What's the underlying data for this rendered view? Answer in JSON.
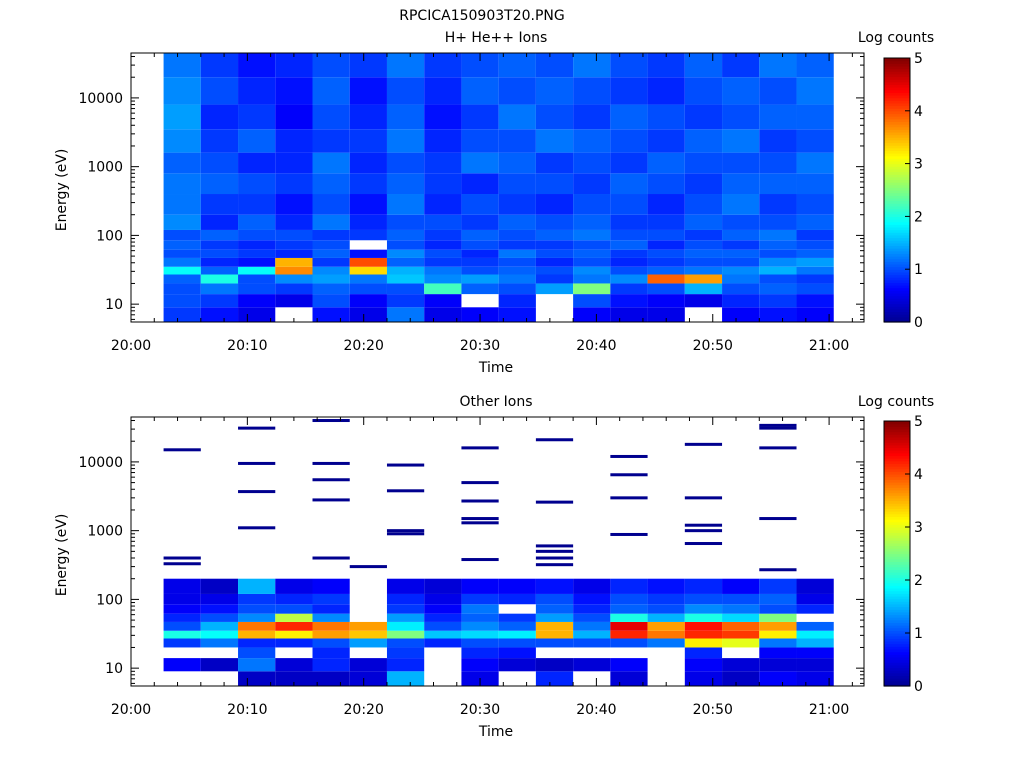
{
  "figure_title": "RPCICA150903T20.PNG",
  "colormap": [
    "#00008f",
    "#0000ff",
    "#0080ff",
    "#00ffff",
    "#80ff80",
    "#ffff00",
    "#ff8000",
    "#ff0000",
    "#800000"
  ],
  "chart_data": [
    {
      "type": "heatmap",
      "title": "H+ He++ Ions",
      "xlabel": "Time",
      "ylabel": "Energy (eV)",
      "x_ticks": [
        "20:00",
        "20:10",
        "20:20",
        "20:30",
        "20:40",
        "20:50",
        "21:00"
      ],
      "y_ticks": [
        "10",
        "100",
        "1000",
        "10000"
      ],
      "y_scale": "log",
      "ylim": [
        5.5,
        45000
      ],
      "xlim_minutes": [
        0,
        63
      ],
      "colorbar_label": "Log counts",
      "colorbar_ticks": [
        "0",
        "1",
        "2",
        "3",
        "4",
        "5"
      ],
      "colorbar_range": [
        0,
        5
      ],
      "time_bins_minutes": [
        [
          2.8,
          6.0
        ],
        [
          6.0,
          9.2
        ],
        [
          9.2,
          12.4
        ],
        [
          12.4,
          15.6
        ],
        [
          15.6,
          18.8
        ],
        [
          18.8,
          22.0
        ],
        [
          22.0,
          25.2
        ],
        [
          25.2,
          28.4
        ],
        [
          28.4,
          31.6
        ],
        [
          31.6,
          34.8
        ],
        [
          34.8,
          38.0
        ],
        [
          38.0,
          41.2
        ],
        [
          41.2,
          44.4
        ],
        [
          44.4,
          47.6
        ],
        [
          47.6,
          50.8
        ],
        [
          50.8,
          54.0
        ],
        [
          54.0,
          57.2
        ],
        [
          57.2,
          60.4
        ]
      ],
      "energy_bins_ev": [
        [
          5.5,
          9
        ],
        [
          9,
          14
        ],
        [
          14,
          20
        ],
        [
          20,
          27
        ],
        [
          27,
          35
        ],
        [
          35,
          47
        ],
        [
          47,
          62
        ],
        [
          62,
          85
        ],
        [
          85,
          120
        ],
        [
          120,
          200
        ],
        [
          200,
          400
        ],
        [
          400,
          800
        ],
        [
          800,
          1600
        ],
        [
          1600,
          3500
        ],
        [
          3500,
          8000
        ],
        [
          8000,
          20000
        ],
        [
          20000,
          45000
        ]
      ],
      "values": [
        [
          0.9,
          1.0,
          1.0,
          1.1,
          1.9,
          1.2,
          1.0,
          1.1,
          1.0,
          1.3,
          1.2,
          1.2,
          1.1,
          1.3,
          1.4,
          1.3,
          1.2
        ],
        [
          0.7,
          0.9,
          1.2,
          2.0,
          1.1,
          0.8,
          1.0,
          0.9,
          1.1,
          0.8,
          0.9,
          1.1,
          1.0,
          0.9,
          0.8,
          1.0,
          0.9
        ],
        [
          0.5,
          0.6,
          1.0,
          1.0,
          1.9,
          0.7,
          0.9,
          0.8,
          1.0,
          1.1,
          0.9,
          1.0,
          0.8,
          1.1,
          0.9,
          0.8,
          0.7
        ],
        [
          null,
          0.5,
          0.9,
          1.3,
          3.7,
          3.5,
          0.8,
          0.9,
          1.0,
          0.8,
          0.7,
          0.9,
          0.8,
          0.8,
          0.6,
          0.7,
          0.8
        ],
        [
          0.7,
          1.0,
          1.1,
          1.4,
          1.3,
          0.9,
          1.1,
          1.0,
          0.9,
          1.2,
          1.0,
          1.1,
          1.2,
          0.9,
          1.0,
          1.1,
          1.0
        ],
        [
          0.5,
          0.6,
          1.0,
          1.2,
          3.3,
          4.0,
          0.7,
          null,
          0.9,
          0.8,
          0.7,
          0.9,
          0.8,
          0.9,
          0.8,
          0.7,
          0.9
        ],
        [
          1.2,
          0.9,
          1.0,
          1.6,
          1.5,
          1.1,
          1.3,
          1.0,
          1.1,
          1.0,
          1.2,
          1.1,
          1.0,
          1.2,
          1.1,
          1.0,
          1.2
        ],
        [
          0.5,
          0.6,
          2.2,
          1.3,
          1.2,
          0.9,
          1.0,
          0.8,
          0.9,
          1.0,
          0.8,
          0.9,
          0.9,
          0.8,
          0.7,
          0.8,
          0.9
        ],
        [
          0.6,
          null,
          1.1,
          1.4,
          1.0,
          0.9,
          0.8,
          1.0,
          1.1,
          0.9,
          1.0,
          0.8,
          1.2,
          1.0,
          0.9,
          1.1,
          1.0
        ],
        [
          0.7,
          0.8,
          1.0,
          1.2,
          1.1,
          1.0,
          1.2,
          0.9,
          1.0,
          1.1,
          0.9,
          1.0,
          1.1,
          1.0,
          1.2,
          1.0,
          1.1
        ],
        [
          null,
          null,
          1.4,
          0.9,
          1.0,
          0.8,
          1.0,
          0.9,
          1.1,
          1.0,
          0.8,
          1.0,
          0.9,
          1.2,
          1.0,
          1.1,
          1.0
        ],
        [
          0.6,
          1.0,
          2.5,
          1.2,
          1.3,
          1.0,
          1.1,
          1.0,
          1.2,
          1.1,
          1.0,
          0.9,
          1.0,
          1.1,
          0.9,
          1.0,
          1.2
        ],
        [
          0.5,
          0.7,
          0.9,
          1.3,
          1.0,
          0.8,
          0.9,
          1.1,
          1.0,
          0.9,
          1.0,
          1.1,
          0.9,
          1.0,
          1.1,
          0.9,
          1.0
        ],
        [
          0.5,
          0.6,
          1.0,
          3.9,
          1.1,
          0.9,
          1.0,
          0.8,
          1.0,
          0.9,
          0.8,
          1.0,
          1.1,
          0.9,
          1.0,
          0.8,
          0.9
        ],
        [
          null,
          0.5,
          1.5,
          3.6,
          1.2,
          1.0,
          1.1,
          1.0,
          0.9,
          1.1,
          1.0,
          0.9,
          1.0,
          1.1,
          0.9,
          1.0,
          1.1
        ],
        [
          0.6,
          0.8,
          1.0,
          1.2,
          1.3,
          1.0,
          1.1,
          0.9,
          1.1,
          1.0,
          1.2,
          1.1,
          1.0,
          1.2,
          1.0,
          1.1,
          0.9
        ],
        [
          0.7,
          0.9,
          1.1,
          1.0,
          1.5,
          1.3,
          1.0,
          1.1,
          1.2,
          1.0,
          0.9,
          1.1,
          1.0,
          0.9,
          1.1,
          1.0,
          1.2
        ],
        [
          0.6,
          0.7,
          1.0,
          0.9,
          1.2,
          1.4,
          1.1,
          1.0,
          0.9,
          1.1,
          1.0,
          1.1,
          1.2,
          1.0,
          1.1,
          1.2,
          1.1
        ]
      ]
    },
    {
      "type": "heatmap",
      "title": "Other Ions",
      "xlabel": "Time",
      "ylabel": "Energy (eV)",
      "x_ticks": [
        "20:00",
        "20:10",
        "20:20",
        "20:30",
        "20:40",
        "20:50",
        "21:00"
      ],
      "y_ticks": [
        "10",
        "100",
        "1000",
        "10000"
      ],
      "y_scale": "log",
      "ylim": [
        5.5,
        45000
      ],
      "xlim_minutes": [
        0,
        63
      ],
      "colorbar_label": "Log counts",
      "colorbar_ticks": [
        "0",
        "1",
        "2",
        "3",
        "4",
        "5"
      ],
      "colorbar_range": [
        0,
        5
      ],
      "time_bins_minutes": [
        [
          2.8,
          6.0
        ],
        [
          6.0,
          9.2
        ],
        [
          9.2,
          12.4
        ],
        [
          12.4,
          15.6
        ],
        [
          15.6,
          18.8
        ],
        [
          18.8,
          22.0
        ],
        [
          22.0,
          25.2
        ],
        [
          25.2,
          28.4
        ],
        [
          28.4,
          31.6
        ],
        [
          31.6,
          34.8
        ],
        [
          34.8,
          38.0
        ],
        [
          38.0,
          41.2
        ],
        [
          41.2,
          44.4
        ],
        [
          44.4,
          47.6
        ],
        [
          47.6,
          50.8
        ],
        [
          50.8,
          54.0
        ],
        [
          54.0,
          57.2
        ],
        [
          57.2,
          60.4
        ]
      ],
      "energy_bins_ev": [
        [
          5.5,
          9
        ],
        [
          9,
          14
        ],
        [
          14,
          20
        ],
        [
          20,
          27
        ],
        [
          27,
          35
        ],
        [
          35,
          47
        ],
        [
          47,
          62
        ],
        [
          62,
          85
        ],
        [
          85,
          120
        ],
        [
          120,
          200
        ]
      ],
      "values": [
        [
          null,
          0.6,
          null,
          0.9,
          2.0,
          1.0,
          0.8,
          0.6,
          0.5,
          0.5
        ],
        [
          null,
          0.3,
          null,
          1.2,
          1.9,
          1.5,
          1.0,
          0.7,
          0.5,
          0.3
        ],
        [
          0.3,
          1.2,
          1.0,
          0.8,
          3.5,
          3.8,
          1.3,
          1.0,
          0.9,
          1.5
        ],
        [
          0.3,
          0.4,
          null,
          0.8,
          3.2,
          4.2,
          2.8,
          1.0,
          0.8,
          0.5
        ],
        [
          0.3,
          0.8,
          0.8,
          1.0,
          3.6,
          3.8,
          1.3,
          0.8,
          0.9,
          0.6
        ],
        [
          0.4,
          0.4,
          null,
          1.4,
          3.4,
          3.6,
          null,
          null,
          null,
          null
        ],
        [
          1.5,
          0.8,
          0.9,
          1.0,
          2.5,
          1.8,
          1.4,
          0.9,
          0.8,
          0.5
        ],
        [
          null,
          null,
          null,
          0.8,
          1.6,
          1.0,
          0.8,
          0.6,
          0.5,
          0.4
        ],
        [
          0.5,
          0.6,
          0.8,
          1.0,
          1.7,
          1.3,
          1.1,
          1.2,
          0.9,
          0.6
        ],
        [
          null,
          0.4,
          0.7,
          1.0,
          1.8,
          1.1,
          0.9,
          null,
          0.8,
          0.6
        ],
        [
          0.8,
          0.3,
          null,
          1.0,
          3.5,
          3.5,
          1.4,
          1.1,
          1.0,
          0.7
        ],
        [
          null,
          0.4,
          null,
          1.0,
          1.5,
          1.2,
          1.0,
          0.8,
          0.7,
          0.5
        ],
        [
          0.4,
          0.6,
          null,
          1.0,
          4.2,
          4.5,
          2.0,
          1.1,
          1.0,
          0.8
        ],
        [
          null,
          null,
          null,
          1.2,
          3.8,
          3.6,
          1.5,
          1.0,
          0.9,
          0.7
        ],
        [
          0.5,
          0.6,
          0.8,
          3.2,
          4.2,
          4.3,
          2.0,
          1.3,
          1.0,
          0.8
        ],
        [
          0.3,
          0.4,
          null,
          3.0,
          4.1,
          3.9,
          1.7,
          1.2,
          1.0,
          0.6
        ],
        [
          0.6,
          0.4,
          0.6,
          1.2,
          3.2,
          3.6,
          2.5,
          1.0,
          1.1,
          0.9
        ],
        [
          0.5,
          0.4,
          0.6,
          1.5,
          1.8,
          1.1,
          null,
          0.8,
          0.5,
          0.4
        ]
      ],
      "sparse_bins_ev": [
        [
          400,
          450
        ],
        [
          950,
          1050
        ],
        [
          1800,
          2000
        ],
        [
          2700,
          2900
        ],
        [
          3800,
          4200
        ],
        [
          5500,
          6000
        ],
        [
          9500,
          10500
        ],
        [
          15000,
          16000
        ],
        [
          33000,
          36000
        ]
      ],
      "sparse_points": [
        [
          0,
          400
        ],
        [
          0,
          330
        ],
        [
          0,
          15000
        ],
        [
          2,
          1100
        ],
        [
          2,
          3700
        ],
        [
          2,
          9500
        ],
        [
          2,
          31000
        ],
        [
          4,
          400
        ],
        [
          4,
          2800
        ],
        [
          4,
          5500
        ],
        [
          4,
          9500
        ],
        [
          4,
          40000
        ],
        [
          5,
          300
        ],
        [
          6,
          1000
        ],
        [
          6,
          900
        ],
        [
          6,
          3800
        ],
        [
          6,
          9000
        ],
        [
          8,
          380
        ],
        [
          8,
          1500
        ],
        [
          8,
          1300
        ],
        [
          8,
          2700
        ],
        [
          8,
          5000
        ],
        [
          8,
          16000
        ],
        [
          10,
          600
        ],
        [
          10,
          500
        ],
        [
          10,
          400
        ],
        [
          10,
          320
        ],
        [
          10,
          2600
        ],
        [
          10,
          21000
        ],
        [
          12,
          880
        ],
        [
          12,
          3000
        ],
        [
          12,
          6500
        ],
        [
          12,
          12000
        ],
        [
          14,
          1200
        ],
        [
          14,
          1000
        ],
        [
          14,
          650
        ],
        [
          14,
          3000
        ],
        [
          14,
          18000
        ],
        [
          16,
          1500
        ],
        [
          16,
          270
        ],
        [
          16,
          16000
        ],
        [
          16,
          31000
        ],
        [
          16,
          34000
        ]
      ]
    }
  ]
}
